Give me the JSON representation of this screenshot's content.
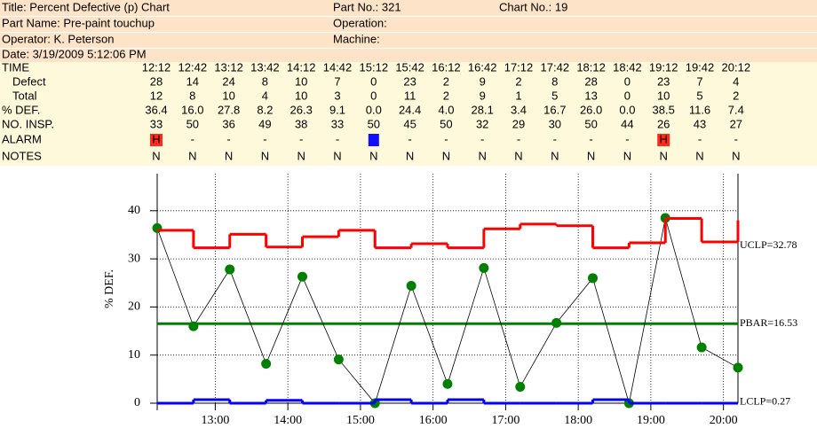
{
  "header": {
    "title": "Title: Percent Defective (p) Chart",
    "part_no": "Part No.: 321",
    "chart_no": "Chart No.: 19",
    "part_name": "Part Name: Pre-paint touchup",
    "operation": "Operation:",
    "operator": "Operator: K. Peterson",
    "machine": "Machine:",
    "date": "Date: 3/19/2009 5:12:06 PM"
  },
  "table": {
    "row_labels": [
      "TIME",
      "Defect",
      "Total",
      "% DEF.",
      "NO. INSP.",
      "ALARM",
      "NOTES"
    ],
    "time": [
      "12:12",
      "12:42",
      "13:12",
      "13:42",
      "14:12",
      "14:42",
      "15:12",
      "15:42",
      "16:12",
      "16:42",
      "17:12",
      "17:42",
      "18:12",
      "18:42",
      "19:12",
      "19:42",
      "20:12"
    ],
    "defect": [
      28,
      14,
      24,
      8,
      10,
      7,
      0,
      23,
      2,
      9,
      2,
      8,
      28,
      0,
      23,
      7,
      4
    ],
    "total": [
      12,
      8,
      10,
      4,
      10,
      3,
      0,
      11,
      2,
      9,
      1,
      5,
      13,
      0,
      10,
      5,
      2
    ],
    "no_insp": [
      33,
      50,
      36,
      49,
      38,
      33,
      50,
      45,
      50,
      32,
      29,
      30,
      50,
      44,
      26,
      43,
      27
    ],
    "alarm": [
      "H",
      "-",
      "-",
      "-",
      "-",
      "-",
      null,
      "-",
      "-",
      "-",
      "-",
      "-",
      "-",
      "-",
      "H",
      "-",
      "-"
    ],
    "alarm_high_color": "#ff2a1a",
    "alarm_low_color": "#1010ff",
    "notes": [
      "N",
      "N",
      "N",
      "N",
      "N",
      "N",
      "N",
      "N",
      "N",
      "N",
      "N",
      "N",
      "N",
      "N",
      "N",
      "N",
      "N"
    ]
  },
  "chart_data": {
    "type": "control",
    "ylabel": "% DEF.",
    "x": [
      12.2,
      12.7,
      13.2,
      13.7,
      14.2,
      14.7,
      15.2,
      15.7,
      16.2,
      16.7,
      17.2,
      17.7,
      18.2,
      18.7,
      19.2,
      19.7,
      20.2
    ],
    "xlim": [
      12.2,
      20.2
    ],
    "xticks": [
      {
        "value": 13,
        "label": "13:00"
      },
      {
        "value": 14,
        "label": "14:00"
      },
      {
        "value": 15,
        "label": "15:00"
      },
      {
        "value": 16,
        "label": "16:00"
      },
      {
        "value": 17,
        "label": "17:00"
      },
      {
        "value": 18,
        "label": "18:00"
      },
      {
        "value": 19,
        "label": "19:00"
      },
      {
        "value": 20,
        "label": "20:00"
      }
    ],
    "ylim": [
      0,
      47.7
    ],
    "yticks": [
      0,
      10,
      20,
      30,
      40
    ],
    "grid": true,
    "series": [
      {
        "color": "#008000",
        "line_color": "#000000",
        "values": [
          36.4,
          16.0,
          27.8,
          8.2,
          26.3,
          9.1,
          0.0,
          24.4,
          4.0,
          28.1,
          3.4,
          16.7,
          26.0,
          0.0,
          38.5,
          11.6,
          7.4
        ],
        "value_labels": [
          "36.4",
          "16.0",
          "27.8",
          "8.2",
          "26.3",
          "9.1",
          "0.0",
          "24.4",
          "4.0",
          "28.1",
          "3.4",
          "16.7",
          "26.0",
          "0.0",
          "38.5",
          "11.6",
          "7.4"
        ]
      },
      {
        "color": "#ff0000",
        "step": true,
        "values": [
          35.93,
          32.29,
          35.11,
          32.45,
          34.61,
          35.93,
          32.29,
          33.14,
          32.29,
          36.23,
          37.22,
          36.88,
          32.29,
          33.33,
          38.39,
          33.53,
          37.98
        ]
      },
      {
        "color": "#0000ff",
        "step": true,
        "values": [
          0,
          0.74,
          0,
          0.61,
          0,
          0,
          0.74,
          0,
          0.74,
          0,
          0,
          0,
          0.74,
          0,
          0,
          0,
          0
        ]
      }
    ],
    "annotations": [
      {
        "text": "UCLP=32.78",
        "value": 32.78
      },
      {
        "text": "PBAR=16.53",
        "value": 16.53,
        "color": "#008000"
      },
      {
        "text": "LCLP=0.27",
        "value": 0.27
      }
    ]
  }
}
